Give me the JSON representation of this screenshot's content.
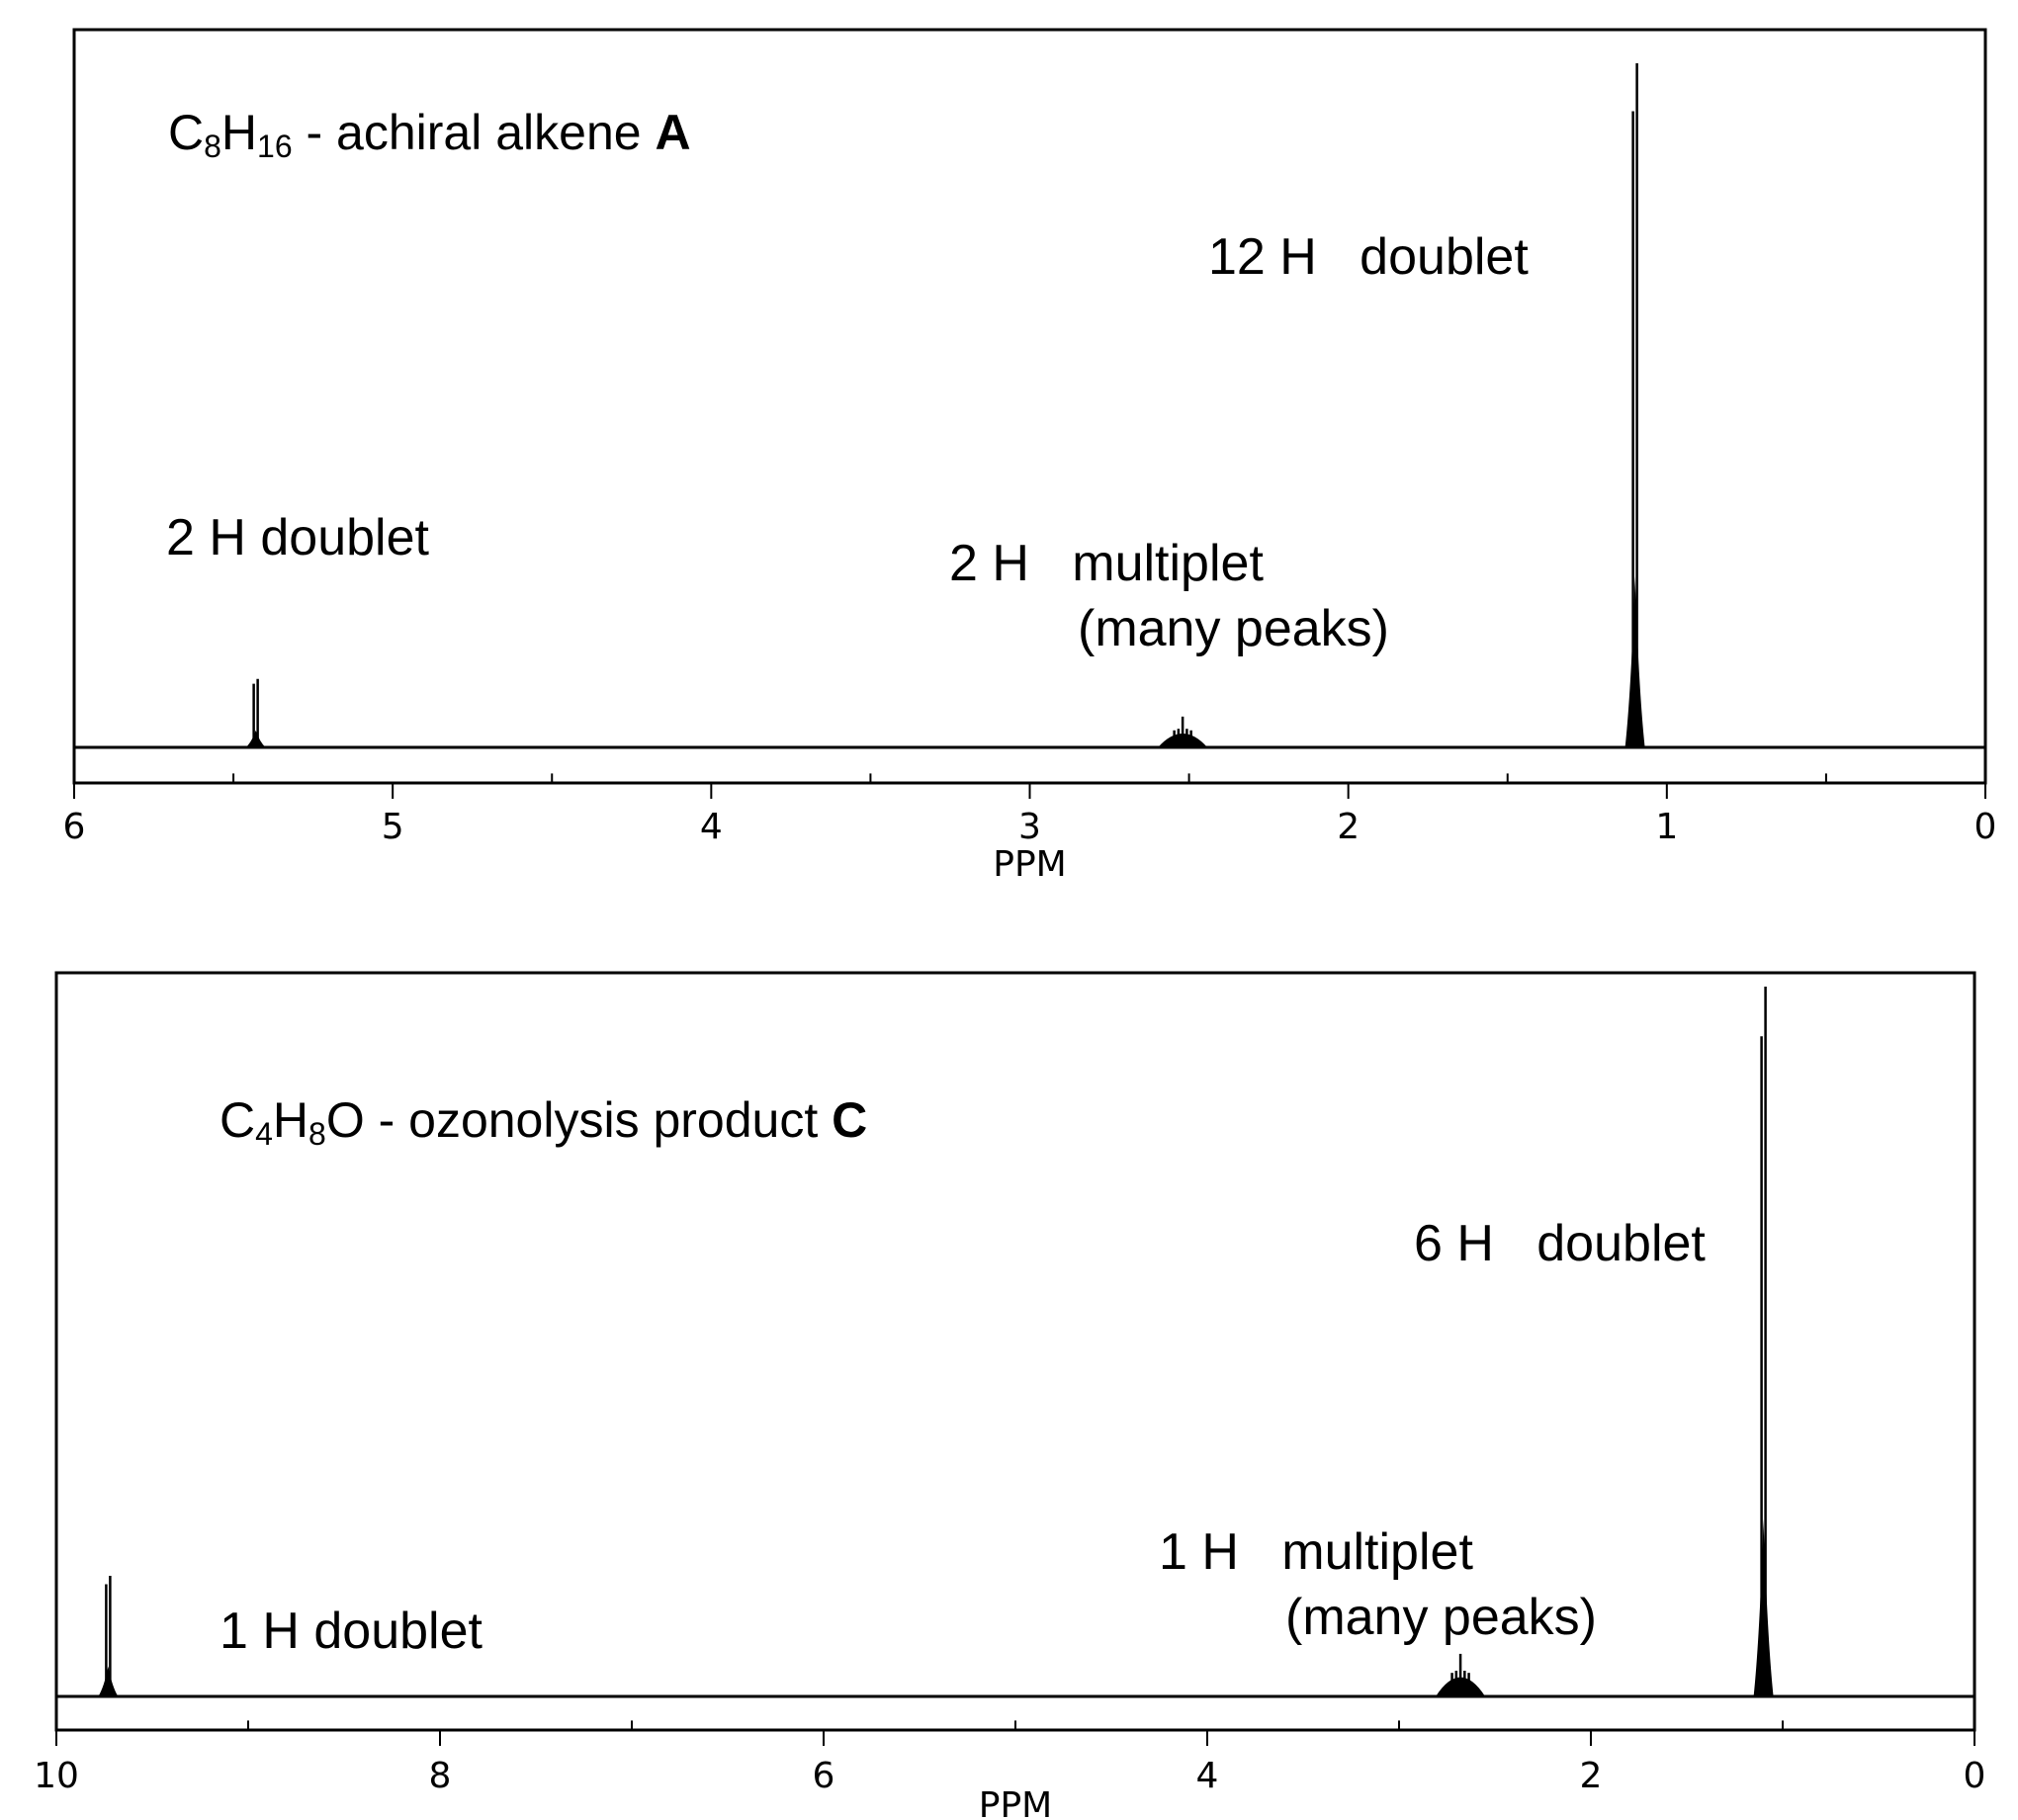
{
  "chart_data": [
    {
      "type": "line",
      "title": {
        "formula_main": "C",
        "formula_sub1": "8",
        "formula_mid": "H",
        "formula_sub2": "16",
        "rest": " - achiral alkene ",
        "label": "A"
      },
      "xlabel": "PPM",
      "xlim": [
        6,
        0
      ],
      "ticks": [
        "6",
        "5",
        "4",
        "3",
        "2",
        "1",
        "0"
      ],
      "tick_values": [
        6,
        5,
        4,
        3,
        2,
        1,
        0
      ],
      "peaks": [
        {
          "ppm": 5.43,
          "rel_height": 0.1,
          "kind": "doublet",
          "annotation": "2 H doublet"
        },
        {
          "ppm": 2.52,
          "rel_height": 0.045,
          "kind": "multiplet",
          "annotation": "2 H   multiplet",
          "annotation2": "(many peaks)"
        },
        {
          "ppm": 1.1,
          "rel_height": 1.0,
          "kind": "doublet",
          "annotation": "12 H   doublet"
        }
      ]
    },
    {
      "type": "line",
      "title": {
        "formula_main": "C",
        "formula_sub1": "4",
        "formula_mid": "H",
        "formula_sub2": "8",
        "rest": "O - ozonolysis product ",
        "label": "C"
      },
      "xlabel": "PPM",
      "xlim": [
        10,
        0
      ],
      "ticks": [
        "10",
        "8",
        "6",
        "4",
        "2",
        "0"
      ],
      "tick_values": [
        10,
        8,
        6,
        4,
        2,
        0
      ],
      "peaks": [
        {
          "ppm": 9.73,
          "rel_height": 0.17,
          "kind": "doublet",
          "annotation": "1 H doublet"
        },
        {
          "ppm": 2.68,
          "rel_height": 0.06,
          "kind": "multiplet",
          "annotation": "1 H   multiplet",
          "annotation2": "(many peaks)"
        },
        {
          "ppm": 1.1,
          "rel_height": 1.0,
          "kind": "doublet",
          "annotation": "6 H   doublet"
        }
      ]
    }
  ]
}
